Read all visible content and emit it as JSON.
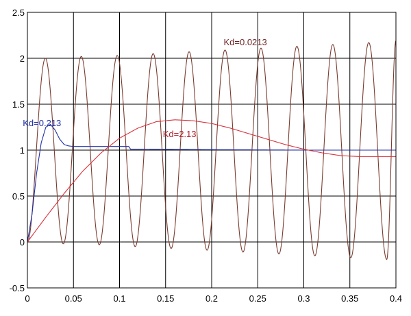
{
  "chart_data": {
    "type": "line",
    "title": "",
    "xlabel": "",
    "ylabel": "",
    "xlim": [
      0,
      0.4
    ],
    "ylim": [
      -0.5,
      2.5
    ],
    "x_ticks": [
      0,
      0.05,
      0.1,
      0.15,
      0.2,
      0.25,
      0.3,
      0.35,
      0.4
    ],
    "x_tick_labels": [
      "0",
      "0.05",
      "0.1",
      "0.15",
      "0.2",
      "0.25",
      "0.3",
      "0.35",
      "0.4"
    ],
    "y_ticks": [
      -0.5,
      0,
      0.5,
      1,
      1.5,
      2,
      2.5
    ],
    "y_tick_labels": [
      "-0.5",
      "0",
      "0.5",
      "1",
      "1.5",
      "2",
      "2.5"
    ],
    "grid": true,
    "series": [
      {
        "name": "Kd=0.0213",
        "color": "#7a3b2e",
        "x": [
          0,
          0.0195,
          0.039,
          0.0585,
          0.078,
          0.0975,
          0.117,
          0.1365,
          0.156,
          0.1755,
          0.195,
          0.2145,
          0.234,
          0.2535,
          0.273,
          0.2925,
          0.312,
          0.3315,
          0.351,
          0.3705,
          0.39,
          0.4
        ],
        "y": [
          0.0,
          2.0,
          -0.02,
          2.02,
          -0.03,
          2.03,
          -0.05,
          2.05,
          -0.07,
          2.07,
          -0.09,
          2.09,
          -0.11,
          2.11,
          -0.13,
          2.13,
          -0.15,
          2.15,
          -0.17,
          2.17,
          -0.19,
          2.19
        ]
      },
      {
        "name": "Kd=0.213",
        "color": "#1f2fa8",
        "x": [
          0,
          0.005,
          0.01,
          0.015,
          0.02,
          0.025,
          0.03,
          0.035,
          0.04,
          0.045,
          0.05,
          0.07,
          0.1,
          0.11,
          0.112,
          0.12,
          0.2,
          0.3,
          0.4
        ],
        "y": [
          0,
          0.3,
          0.75,
          1.08,
          1.25,
          1.28,
          1.22,
          1.12,
          1.06,
          1.045,
          1.04,
          1.04,
          1.04,
          1.04,
          1.01,
          1.01,
          1.005,
          1.0,
          1.0
        ]
      },
      {
        "name": "Kd=2.13",
        "color": "#d8323c",
        "x": [
          0,
          0.02,
          0.04,
          0.06,
          0.08,
          0.1,
          0.12,
          0.14,
          0.16,
          0.18,
          0.2,
          0.22,
          0.24,
          0.26,
          0.28,
          0.3,
          0.32,
          0.34,
          0.36,
          0.38,
          0.4
        ],
        "y": [
          0,
          0.27,
          0.53,
          0.77,
          0.97,
          1.13,
          1.24,
          1.31,
          1.33,
          1.32,
          1.29,
          1.24,
          1.18,
          1.12,
          1.06,
          1.01,
          0.97,
          0.94,
          0.93,
          0.93,
          0.93
        ]
      }
    ],
    "annotations": [
      {
        "text": "Kd=0.0213",
        "x": 0.213,
        "y": 2.14,
        "color": "#6b1f1f"
      },
      {
        "text": "Kd=0.213",
        "x": -0.005,
        "y": 1.26,
        "color": "#1f2fa8"
      },
      {
        "text": "Kd=2.13",
        "x": 0.147,
        "y": 1.14,
        "color": "#b01c28"
      }
    ],
    "colors": {
      "axes": "#000000",
      "grid": "#000000",
      "background": "#ffffff"
    }
  }
}
